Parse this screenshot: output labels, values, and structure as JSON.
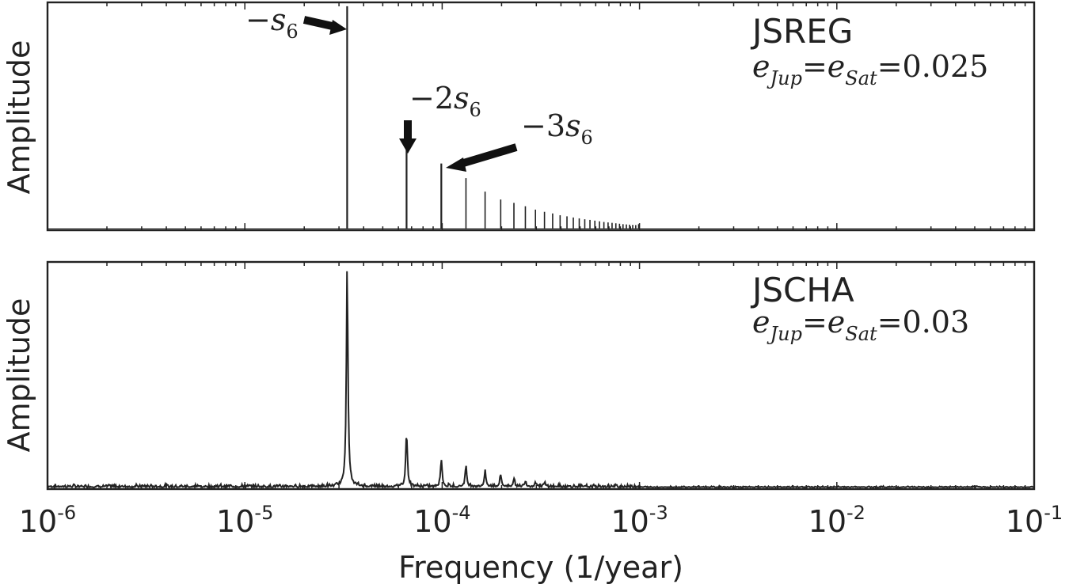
{
  "chart_data": [
    {
      "type": "line",
      "panel": "top",
      "title": "JSREG",
      "subtitle": "e_Jup = e_Sat = 0.025",
      "xlabel": "",
      "ylabel": "Amplitude",
      "xscale": "log",
      "xlim": [
        1e-06,
        0.1
      ],
      "ylim": [
        0,
        1
      ],
      "grid": false,
      "series": [
        {
          "style": "sticks",
          "x": [
            3.3e-05,
            6.6e-05,
            9.9e-05,
            0.000132,
            0.000165,
            0.000198,
            0.000231,
            0.000264,
            0.000297,
            0.00033,
            0.000363,
            0.000396,
            0.000429,
            0.000462,
            0.000495,
            0.000528,
            0.000561,
            0.000594,
            0.000627,
            0.00066,
            0.000693,
            0.000726,
            0.000759,
            0.000792,
            0.000825,
            0.000858,
            0.000891,
            0.000924,
            0.000957,
            0.00099
          ],
          "y": [
            0.99,
            0.36,
            0.29,
            0.225,
            0.165,
            0.13,
            0.115,
            0.1,
            0.085,
            0.075,
            0.068,
            0.06,
            0.055,
            0.05,
            0.046,
            0.042,
            0.039,
            0.036,
            0.033,
            0.03,
            0.028,
            0.026,
            0.024,
            0.022,
            0.02,
            0.019,
            0.018,
            0.017,
            0.016,
            0.02
          ]
        }
      ],
      "annotations": [
        {
          "text": "−s6",
          "x": 3.3e-05
        },
        {
          "text": "−2s6",
          "x": 6.6e-05
        },
        {
          "text": "−3s6",
          "x": 9.9e-05
        }
      ]
    },
    {
      "type": "line",
      "panel": "bottom",
      "title": "JSCHA",
      "subtitle": "e_Jup = e_Sat = 0.03",
      "xlabel": "Frequency (1/year)",
      "ylabel": "Amplitude",
      "xscale": "log",
      "xlim": [
        1e-06,
        0.1
      ],
      "ylim": [
        0,
        1
      ],
      "grid": false,
      "xticks": [
        {
          "base": "10",
          "exp": "-6"
        },
        {
          "base": "10",
          "exp": "-5"
        },
        {
          "base": "10",
          "exp": "-4"
        },
        {
          "base": "10",
          "exp": "-3"
        },
        {
          "base": "10",
          "exp": "-2"
        },
        {
          "base": "10",
          "exp": "-1"
        }
      ],
      "series": [
        {
          "style": "broadened-peaks",
          "peaks": [
            {
              "x": 3.3e-05,
              "y": 0.98
            },
            {
              "x": 6.6e-05,
              "y": 0.24
            },
            {
              "x": 9.9e-05,
              "y": 0.12
            },
            {
              "x": 0.000132,
              "y": 0.09
            },
            {
              "x": 0.000165,
              "y": 0.065
            },
            {
              "x": 0.000198,
              "y": 0.05
            },
            {
              "x": 0.000231,
              "y": 0.035
            },
            {
              "x": 0.000264,
              "y": 0.025
            },
            {
              "x": 0.000297,
              "y": 0.02
            },
            {
              "x": 0.00033,
              "y": 0.015
            }
          ],
          "noise_floor": 0.012
        }
      ]
    }
  ],
  "colors": {
    "ink": "#222222",
    "background": "#ffffff"
  }
}
